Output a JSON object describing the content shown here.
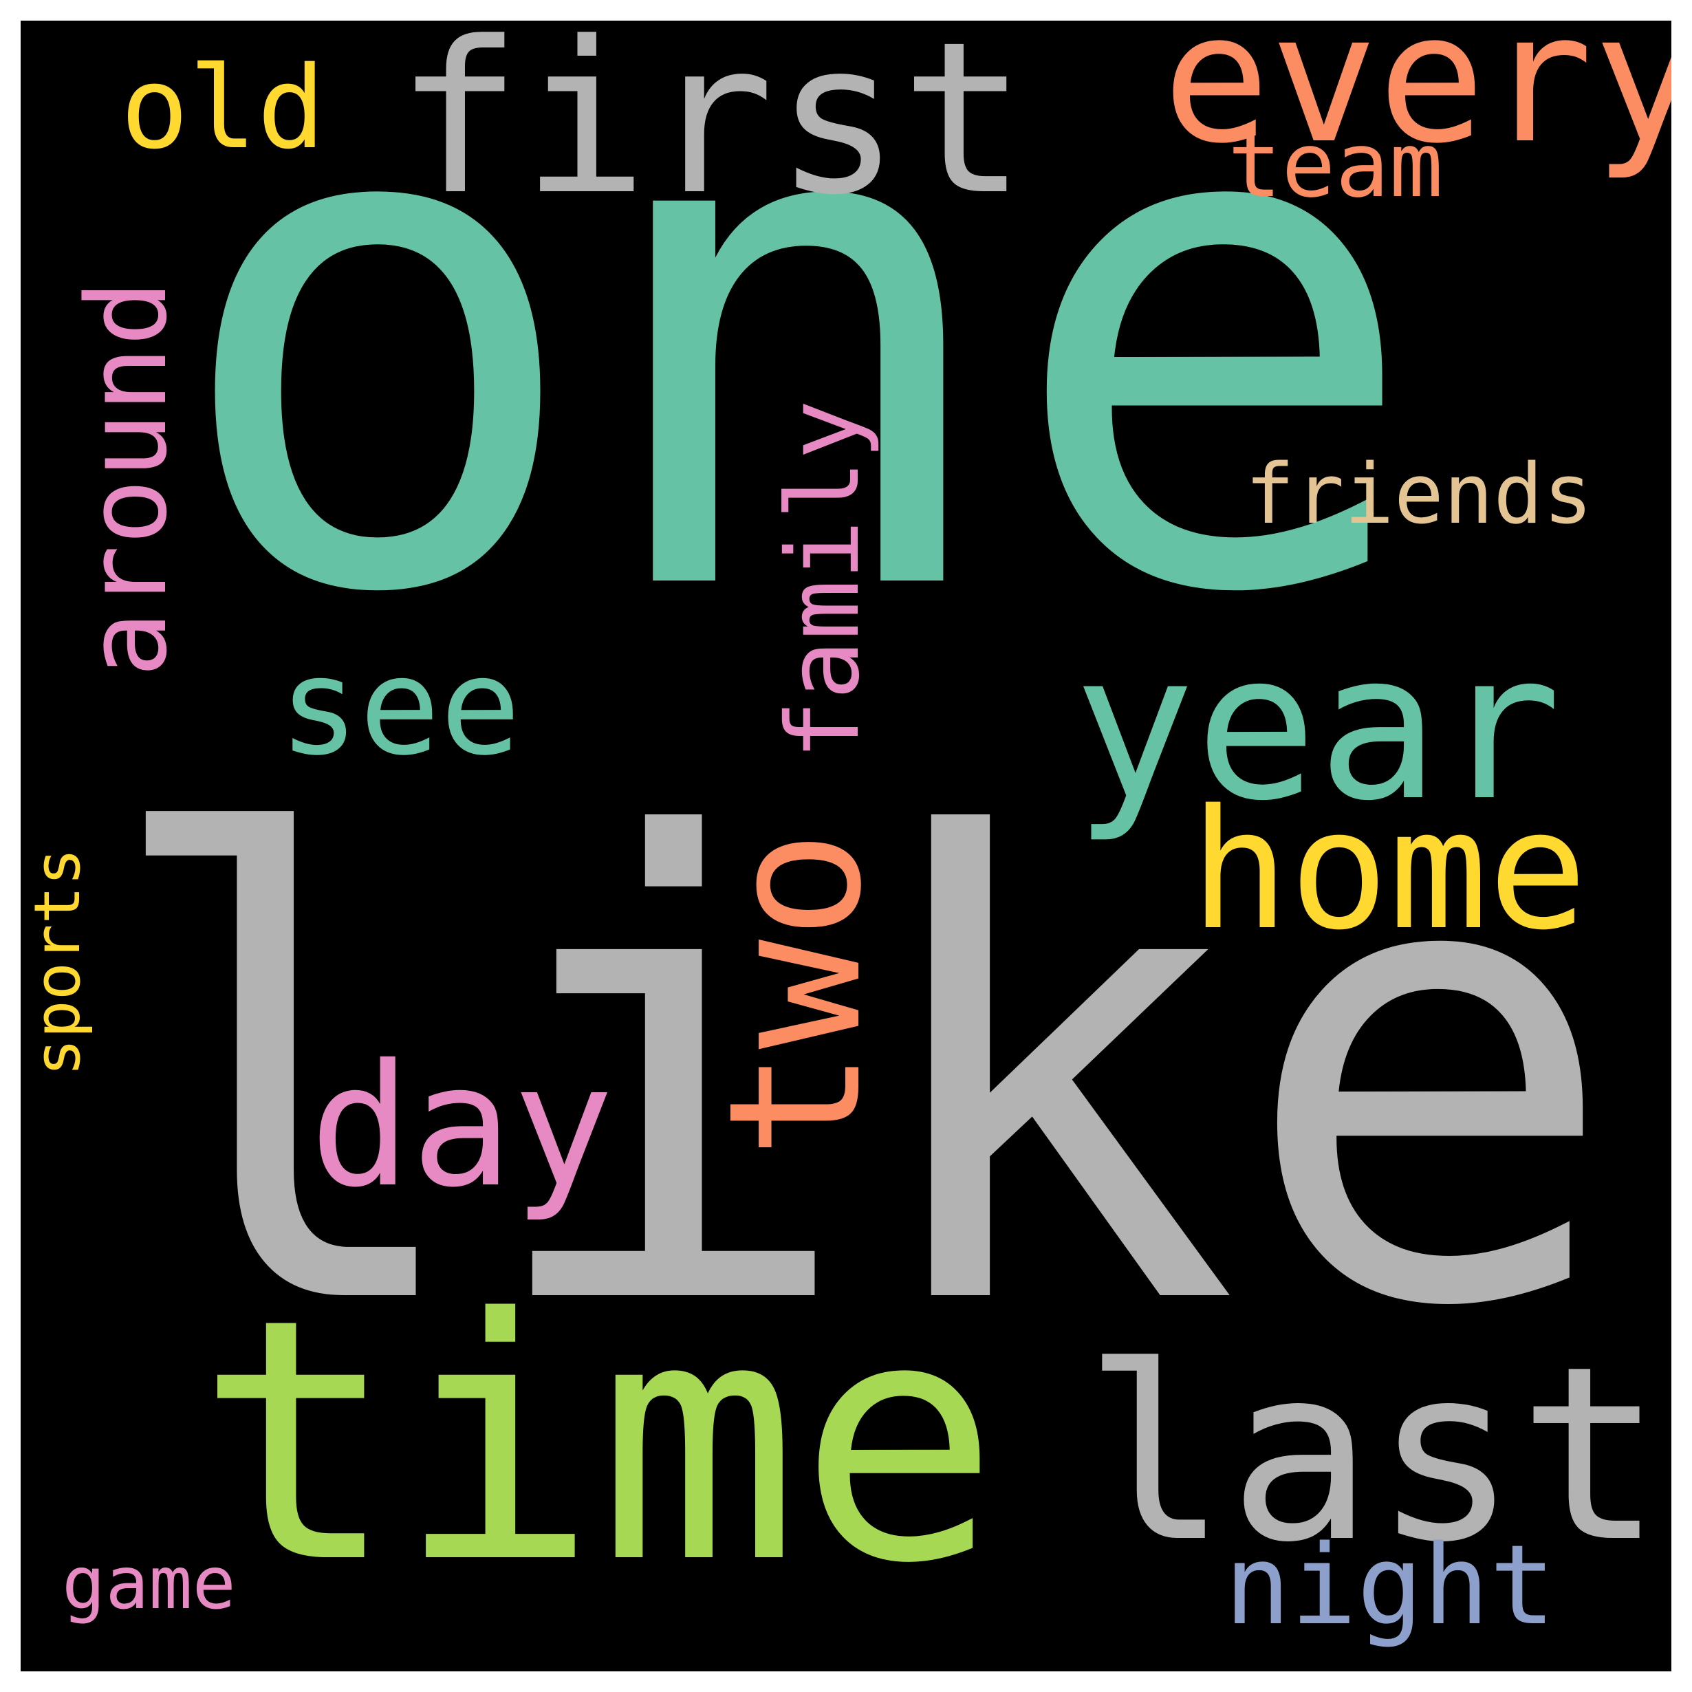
{
  "background_color": "#000000",
  "border_color": "#ffffff",
  "words": [
    {
      "text": "one",
      "color": "#66c2a5"
    },
    {
      "text": "like",
      "color": "#b3b3b3"
    },
    {
      "text": "time",
      "color": "#a6d854"
    },
    {
      "text": "first",
      "color": "#b3b3b3"
    },
    {
      "text": "year",
      "color": "#66c2a5"
    },
    {
      "text": "every",
      "color": "#fc8d62"
    },
    {
      "text": "last",
      "color": "#b3b3b3"
    },
    {
      "text": "two",
      "color": "#fc8d62"
    },
    {
      "text": "home",
      "color": "#ffd92f"
    },
    {
      "text": "day",
      "color": "#e78ac3"
    },
    {
      "text": "around",
      "color": "#e78ac3"
    },
    {
      "text": "family",
      "color": "#e78ac3"
    },
    {
      "text": "see",
      "color": "#66c2a5"
    },
    {
      "text": "old",
      "color": "#ffd92f"
    },
    {
      "text": "team",
      "color": "#fc8d62"
    },
    {
      "text": "friends",
      "color": "#e5c494"
    },
    {
      "text": "night",
      "color": "#8da0cb"
    },
    {
      "text": "game",
      "color": "#e78ac3"
    },
    {
      "text": "sports",
      "color": "#ffd92f"
    }
  ]
}
